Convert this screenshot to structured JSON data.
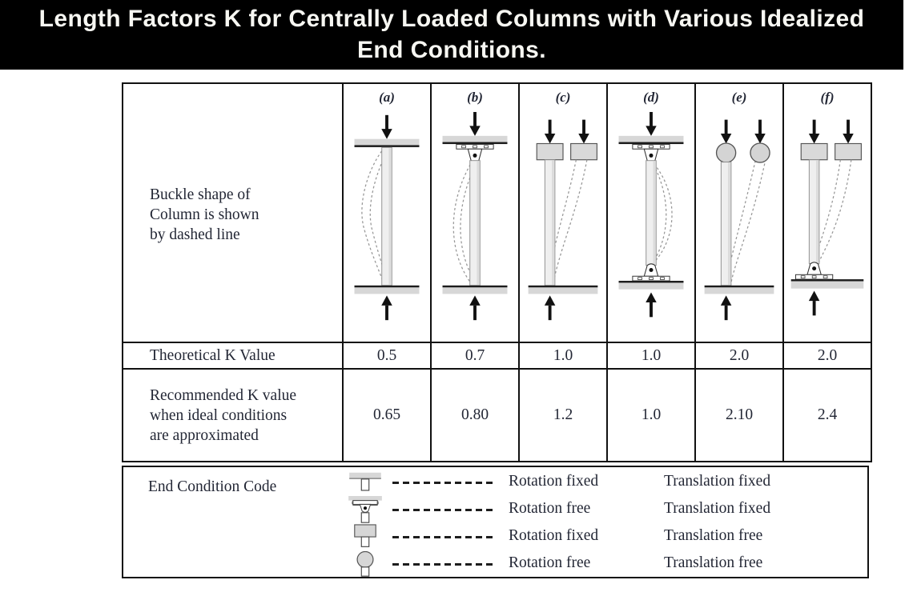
{
  "banner": {
    "line1": "Length Factors K for Centrally Loaded Columns with Various Idealized",
    "line2": "End Conditions.",
    "bg": "#000000",
    "fg": "#f7f7f2"
  },
  "table": {
    "row_labels": {
      "buckle": "Buckle shape of\nColumn is shown\nby dashed line",
      "theoretical": "Theoretical K Value",
      "recommended": "Recommended K value\nwhen ideal conditions\nare approximated"
    },
    "columns": [
      {
        "label": "(a)",
        "theoretical_k": "0.5",
        "recommended_k": "0.65",
        "top_end": "rotation fixed, translation fixed",
        "bottom_end": "rotation fixed, translation fixed",
        "diagram": "fixed-fixed"
      },
      {
        "label": "(b)",
        "theoretical_k": "0.7",
        "recommended_k": "0.80",
        "top_end": "rotation free, translation fixed",
        "bottom_end": "rotation fixed, translation fixed",
        "diagram": "pinned-fixed"
      },
      {
        "label": "(c)",
        "theoretical_k": "1.0",
        "recommended_k": "1.2",
        "top_end": "rotation fixed, translation free",
        "bottom_end": "rotation fixed, translation fixed",
        "diagram": "guided-fixed"
      },
      {
        "label": "(d)",
        "theoretical_k": "1.0",
        "recommended_k": "1.0",
        "top_end": "rotation free, translation fixed",
        "bottom_end": "rotation free, translation fixed",
        "diagram": "pinned-pinned"
      },
      {
        "label": "(e)",
        "theoretical_k": "2.0",
        "recommended_k": "2.10",
        "top_end": "rotation free, translation free",
        "bottom_end": "rotation fixed, translation fixed",
        "diagram": "free-fixed"
      },
      {
        "label": "(f)",
        "theoretical_k": "2.0",
        "recommended_k": "2.4",
        "top_end": "rotation fixed, translation free",
        "bottom_end": "rotation free, translation fixed",
        "diagram": "guided-pinned"
      }
    ]
  },
  "legend": {
    "title": "End Condition Code",
    "rows": [
      {
        "icon": "fixed-end-icon",
        "rotation": "Rotation fixed",
        "translation": "Translation fixed"
      },
      {
        "icon": "pinned-end-icon",
        "rotation": "Rotation free",
        "translation": "Translation fixed"
      },
      {
        "icon": "guided-end-icon",
        "rotation": "Rotation fixed",
        "translation": "Translation free"
      },
      {
        "icon": "free-end-icon",
        "rotation": "Rotation free",
        "translation": "Translation free"
      }
    ]
  },
  "colors": {
    "border": "#111111",
    "text": "#232735",
    "column_fill": "#efefef",
    "support_gray": "#d7d7d7",
    "dashed_curve": "#979797"
  }
}
